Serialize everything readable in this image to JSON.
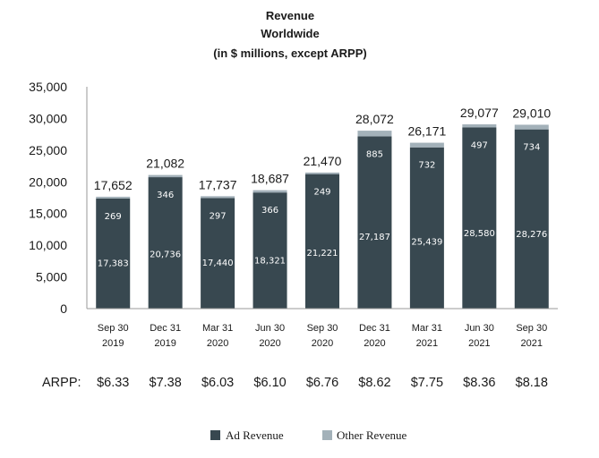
{
  "chart_data": {
    "type": "bar",
    "stacked": true,
    "title": [
      "Revenue",
      "Worldwide",
      "(in $ millions, except ARPP)"
    ],
    "categories": [
      [
        "Sep 30",
        "2019"
      ],
      [
        "Dec 31",
        "2019"
      ],
      [
        "Mar 31",
        "2020"
      ],
      [
        "Jun 30",
        "2020"
      ],
      [
        "Sep 30",
        "2020"
      ],
      [
        "Dec 31",
        "2020"
      ],
      [
        "Mar 31",
        "2021"
      ],
      [
        "Jun 30",
        "2021"
      ],
      [
        "Sep 30",
        "2021"
      ]
    ],
    "series": [
      {
        "name": "Ad Revenue",
        "color": "#384850",
        "values": [
          17383,
          20736,
          17440,
          18321,
          21221,
          27187,
          25439,
          28580,
          28276
        ],
        "labels": [
          "17,383",
          "20,736",
          "17,440",
          "18,321",
          "21,221",
          "27,187",
          "25,439",
          "28,580",
          "28,276"
        ]
      },
      {
        "name": "Other Revenue",
        "color": "#a3b1b9",
        "values": [
          269,
          346,
          297,
          366,
          249,
          885,
          732,
          497,
          734
        ],
        "labels": [
          "269",
          "346",
          "297",
          "366",
          "249",
          "885",
          "732",
          "497",
          "734"
        ]
      }
    ],
    "totals": [
      17652,
      21082,
      17737,
      18687,
      21470,
      28072,
      26171,
      29077,
      29010
    ],
    "total_labels": [
      "17,652",
      "21,082",
      "17,737",
      "18,687",
      "21,470",
      "28,072",
      "26,171",
      "29,077",
      "29,010"
    ],
    "ylim": [
      0,
      35000
    ],
    "yticks": [
      0,
      5000,
      10000,
      15000,
      20000,
      25000,
      30000,
      35000
    ],
    "ytick_labels": [
      "0",
      "5,000",
      "10,000",
      "15,000",
      "20,000",
      "25,000",
      "30,000",
      "35,000"
    ],
    "grid": false,
    "legend_position": "bottom",
    "arpp_label": "ARPP:",
    "arpp": [
      "$6.33",
      "$7.38",
      "$6.03",
      "$6.10",
      "$6.76",
      "$8.62",
      "$7.75",
      "$8.36",
      "$8.18"
    ]
  }
}
